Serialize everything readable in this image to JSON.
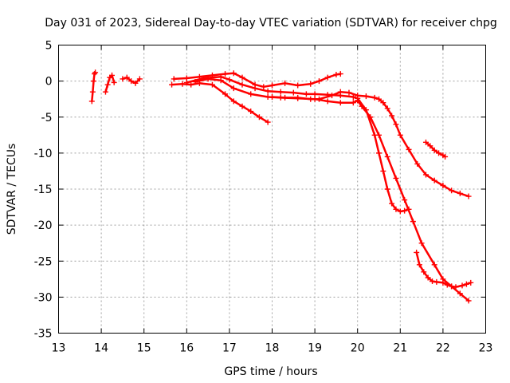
{
  "chart_data": {
    "type": "scatter",
    "title": "Day 031 of 2023, Sidereal Day-to-day VTEC variation (SDTVAR) for receiver chpg",
    "xlabel": "GPS time / hours",
    "ylabel": "SDTVAR / TECUs",
    "xlim": [
      13,
      23
    ],
    "ylim": [
      -35,
      5
    ],
    "xticks": [
      13,
      14,
      15,
      16,
      17,
      18,
      19,
      20,
      21,
      22,
      23
    ],
    "yticks": [
      5,
      0,
      -5,
      -10,
      -15,
      -20,
      -25,
      -30,
      -35
    ],
    "grid": true,
    "marker": "plus",
    "color": "#ff0000",
    "series": [
      {
        "name": "s1",
        "x": [
          13.78,
          13.8,
          13.82,
          13.84,
          13.86
        ],
        "y": [
          -2.8,
          -1.5,
          0.0,
          1.0,
          1.2
        ]
      },
      {
        "name": "s2",
        "x": [
          14.1,
          14.15,
          14.2,
          14.25,
          14.3
        ],
        "y": [
          -1.5,
          -0.5,
          0.5,
          0.8,
          -0.2
        ]
      },
      {
        "name": "s3",
        "x": [
          14.5,
          14.6,
          14.7,
          14.8,
          14.9
        ],
        "y": [
          0.3,
          0.5,
          0.0,
          -0.3,
          0.3
        ]
      },
      {
        "name": "s4",
        "x": [
          15.65,
          15.9,
          16.1,
          16.3,
          16.6,
          16.9,
          17.1,
          17.3,
          17.5,
          17.7,
          17.9
        ],
        "y": [
          -0.5,
          -0.4,
          -0.5,
          -0.3,
          -0.5,
          -1.8,
          -2.8,
          -3.5,
          -4.2,
          -5.0,
          -5.7
        ]
      },
      {
        "name": "s5",
        "x": [
          15.7,
          16.0,
          16.3,
          16.6,
          16.9,
          17.1,
          17.3,
          17.6,
          17.8,
          18.0,
          18.3,
          18.6,
          18.9,
          19.1,
          19.3,
          19.5,
          19.6
        ],
        "y": [
          0.3,
          0.4,
          0.6,
          0.8,
          1.0,
          1.1,
          0.5,
          -0.5,
          -0.8,
          -0.6,
          -0.3,
          -0.6,
          -0.4,
          0.0,
          0.5,
          0.9,
          1.0
        ]
      },
      {
        "name": "s6",
        "x": [
          16.0,
          16.4,
          16.8,
          17.0,
          17.3,
          17.6,
          17.9,
          18.2,
          18.5,
          18.8,
          19.0,
          19.3,
          19.6,
          19.9,
          20.0,
          20.2,
          20.4,
          20.5,
          20.6,
          20.7,
          20.8,
          20.9,
          21.0,
          21.1,
          21.2
        ],
        "y": [
          -0.2,
          0.4,
          0.6,
          0.2,
          -0.5,
          -1.0,
          -1.4,
          -1.5,
          -1.6,
          -1.8,
          -1.8,
          -1.9,
          -2.0,
          -2.2,
          -2.4,
          -4.0,
          -7.5,
          -10.0,
          -12.5,
          -15.0,
          -17.0,
          -17.8,
          -18.1,
          -18.0,
          -17.8
        ]
      },
      {
        "name": "s7",
        "x": [
          16.2,
          16.5,
          16.8,
          17.1,
          17.5,
          17.9,
          18.2,
          18.6,
          19.0,
          19.3,
          19.6,
          19.9,
          20.0,
          20.1,
          20.3,
          20.5,
          20.7,
          20.9,
          21.1,
          21.3,
          21.5,
          21.8,
          22.0,
          22.2,
          22.4,
          22.6
        ],
        "y": [
          -0.1,
          0.3,
          0.1,
          -1.0,
          -1.8,
          -2.2,
          -2.3,
          -2.4,
          -2.5,
          -2.8,
          -3.0,
          -3.0,
          -2.7,
          -3.5,
          -5.0,
          -7.5,
          -10.5,
          -13.5,
          -16.5,
          -19.5,
          -22.5,
          -25.5,
          -27.5,
          -28.5,
          -29.5,
          -30.5
        ]
      },
      {
        "name": "s8",
        "x": [
          18.0,
          18.3,
          18.6,
          18.9,
          19.1,
          19.4,
          19.6,
          19.8,
          20.0,
          20.2,
          20.4,
          20.5,
          20.6,
          20.7,
          20.8,
          20.9,
          21.0,
          21.2,
          21.4,
          21.6,
          21.8,
          22.0,
          22.2,
          22.4,
          22.6
        ],
        "y": [
          -2.2,
          -2.3,
          -2.3,
          -2.5,
          -2.5,
          -2.0,
          -1.5,
          -1.6,
          -2.0,
          -2.1,
          -2.3,
          -2.5,
          -3.0,
          -3.8,
          -4.8,
          -6.0,
          -7.5,
          -9.5,
          -11.5,
          -13.0,
          -13.8,
          -14.5,
          -15.2,
          -15.6,
          -16.0
        ]
      },
      {
        "name": "s9",
        "x": [
          21.38,
          21.45,
          21.55,
          21.65,
          21.75,
          21.85,
          22.0,
          22.1,
          22.2,
          22.3,
          22.45,
          22.55,
          22.65
        ],
        "y": [
          -23.8,
          -25.5,
          -26.5,
          -27.3,
          -27.8,
          -27.9,
          -28.0,
          -28.3,
          -28.5,
          -28.6,
          -28.4,
          -28.2,
          -28.0
        ]
      },
      {
        "name": "s10",
        "x": [
          21.6,
          21.7,
          21.8,
          21.9,
          22.0,
          22.05
        ],
        "y": [
          -8.5,
          -9.0,
          -9.6,
          -10.0,
          -10.3,
          -10.5
        ]
      }
    ]
  }
}
